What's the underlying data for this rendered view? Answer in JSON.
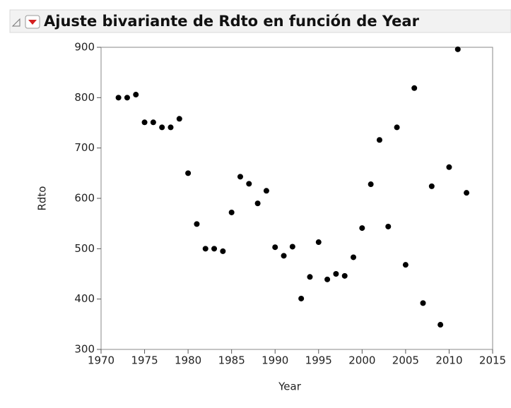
{
  "chart_data": {
    "type": "scatter",
    "title": "Ajuste bivariante de Rdto en función de Year",
    "x_label": "Year",
    "y_label": "Rdto",
    "x": [
      1972,
      1973,
      1974,
      1975,
      1976,
      1977,
      1978,
      1979,
      1980,
      1981,
      1982,
      1983,
      1984,
      1985,
      1986,
      1987,
      1988,
      1989,
      1990,
      1991,
      1992,
      1993,
      1994,
      1995,
      1996,
      1997,
      1998,
      1999,
      2000,
      2001,
      2002,
      2003,
      2004,
      2005,
      2006,
      2007,
      2008,
      2009,
      2010,
      2011,
      2012
    ],
    "values": [
      800,
      800,
      806,
      751,
      751,
      741,
      741,
      758,
      650,
      549,
      500,
      500,
      495,
      572,
      643,
      629,
      590,
      615,
      503,
      486,
      504,
      401,
      444,
      513,
      439,
      450,
      446,
      483,
      541,
      628,
      716,
      544,
      741,
      468,
      819,
      392,
      624,
      349,
      662,
      896,
      611
    ],
    "color": "#000000",
    "xlim": [
      1970,
      2015
    ],
    "xticks": [
      1970,
      1975,
      1980,
      1985,
      1990,
      1995,
      2000,
      2005,
      2010,
      2015
    ],
    "ylim": [
      300,
      900
    ],
    "yticks": [
      300,
      400,
      500,
      600,
      700,
      800,
      900
    ]
  }
}
